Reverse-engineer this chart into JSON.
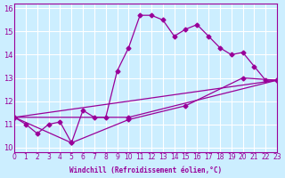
{
  "xlabel": "Windchill (Refroidissement éolien,°C)",
  "ylabel": "",
  "bg_color": "#cceeff",
  "line_color": "#990099",
  "xlim": [
    0,
    23
  ],
  "ylim": [
    9.8,
    16.2
  ],
  "xticks": [
    0,
    1,
    2,
    3,
    4,
    5,
    6,
    7,
    8,
    9,
    10,
    11,
    12,
    13,
    14,
    15,
    16,
    17,
    18,
    19,
    20,
    21,
    22,
    23
  ],
  "yticks": [
    10,
    11,
    12,
    13,
    14,
    15,
    16
  ],
  "series": [
    [
      0,
      11.3
    ],
    [
      1,
      11.0
    ],
    [
      2,
      10.6
    ],
    [
      3,
      11.0
    ],
    [
      4,
      11.1
    ],
    [
      5,
      10.2
    ],
    [
      6,
      11.6
    ],
    [
      7,
      11.3
    ],
    [
      8,
      11.3
    ],
    [
      9,
      13.3
    ],
    [
      10,
      14.3
    ],
    [
      11,
      15.7
    ],
    [
      12,
      15.7
    ],
    [
      13,
      15.5
    ],
    [
      14,
      14.8
    ],
    [
      15,
      15.1
    ],
    [
      16,
      15.3
    ],
    [
      17,
      14.8
    ],
    [
      18,
      14.3
    ],
    [
      19,
      14.0
    ],
    [
      20,
      14.1
    ],
    [
      21,
      13.5
    ],
    [
      22,
      12.9
    ],
    [
      23,
      12.9
    ]
  ],
  "series2": [
    [
      0,
      11.3
    ],
    [
      23,
      12.9
    ]
  ],
  "series3": [
    [
      0,
      11.3
    ],
    [
      10,
      11.3
    ],
    [
      23,
      12.9
    ]
  ],
  "series4": [
    [
      0,
      11.3
    ],
    [
      5,
      10.2
    ],
    [
      10,
      11.2
    ],
    [
      15,
      11.8
    ],
    [
      20,
      13.0
    ],
    [
      23,
      12.9
    ]
  ]
}
